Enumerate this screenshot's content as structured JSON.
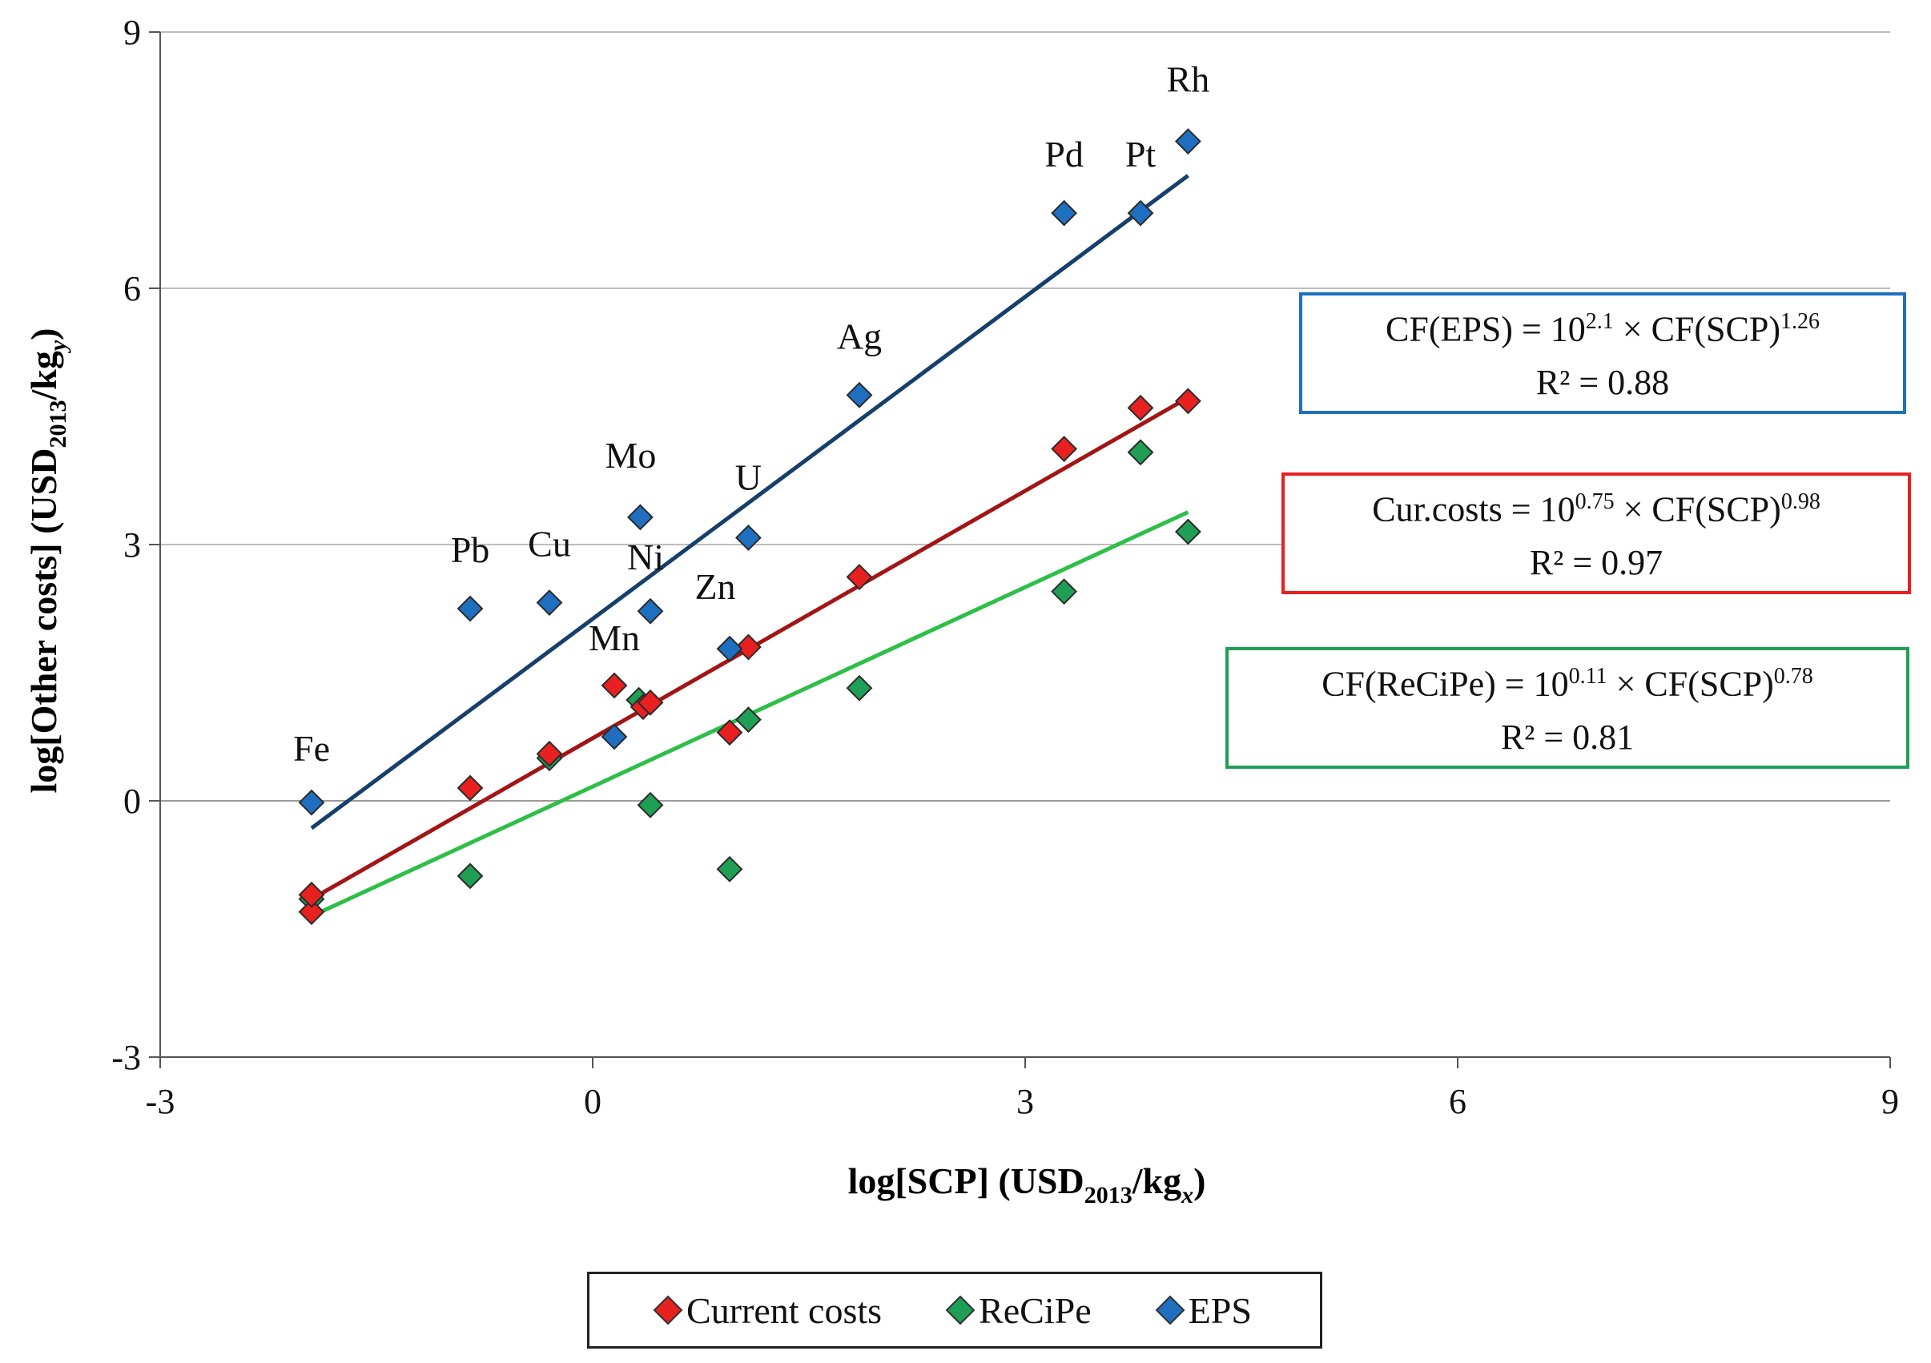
{
  "chart_data": {
    "type": "scatter",
    "title": "",
    "xlabel": {
      "main": "log[SCP] (USD",
      "sub": "2013",
      "slash": "/kg",
      "sub2": "x",
      "close": ")"
    },
    "ylabel": {
      "main": "log[Other costs] (USD",
      "sub": "2013",
      "slash": "/kg",
      "sub2": "y",
      "close": ")"
    },
    "xlim": [
      -3,
      9
    ],
    "ylim": [
      -3,
      9
    ],
    "xticks": [
      -3,
      0,
      3,
      6,
      9
    ],
    "yticks": [
      -3,
      0,
      3,
      6,
      9
    ],
    "grid": "horizontal",
    "series": [
      {
        "name": "Current costs",
        "color": "#e8201f",
        "points": [
          {
            "x": -1.95,
            "y": -1.3
          },
          {
            "x": -1.95,
            "y": -1.1
          },
          {
            "x": -0.85,
            "y": 0.15
          },
          {
            "x": -0.3,
            "y": 0.55
          },
          {
            "x": 0.15,
            "y": 1.35
          },
          {
            "x": 0.35,
            "y": 1.1
          },
          {
            "x": 0.4,
            "y": 1.15
          },
          {
            "x": 0.95,
            "y": 0.8
          },
          {
            "x": 1.08,
            "y": 1.8
          },
          {
            "x": 1.85,
            "y": 2.62
          },
          {
            "x": 3.27,
            "y": 4.12
          },
          {
            "x": 3.8,
            "y": 4.6
          },
          {
            "x": 4.13,
            "y": 4.68
          }
        ],
        "fit": {
          "x1": -1.95,
          "y1": -1.15,
          "x2": 4.13,
          "y2": 4.72,
          "color": "#a31515"
        }
      },
      {
        "name": "ReCiPe",
        "color": "#1f9f55",
        "points": [
          {
            "x": -1.95,
            "y": -1.15
          },
          {
            "x": -0.85,
            "y": -0.88
          },
          {
            "x": -0.3,
            "y": 0.5
          },
          {
            "x": 0.32,
            "y": 1.18
          },
          {
            "x": 0.4,
            "y": -0.05
          },
          {
            "x": 0.95,
            "y": -0.8
          },
          {
            "x": 1.08,
            "y": 0.95
          },
          {
            "x": 1.85,
            "y": 1.32
          },
          {
            "x": 3.27,
            "y": 2.45
          },
          {
            "x": 3.8,
            "y": 4.08
          },
          {
            "x": 4.13,
            "y": 3.15
          }
        ],
        "fit": {
          "x1": -1.95,
          "y1": -1.35,
          "x2": 4.13,
          "y2": 3.38,
          "color": "#2dbf47"
        }
      },
      {
        "name": "EPS",
        "color": "#1f6fc0",
        "points": [
          {
            "x": -1.95,
            "y": -0.02,
            "label": "Fe"
          },
          {
            "x": -0.85,
            "y": 2.25,
            "label": "Pb"
          },
          {
            "x": -0.3,
            "y": 2.32,
            "label": "Cu"
          },
          {
            "x": 0.15,
            "y": 0.75,
            "label": "Mn"
          },
          {
            "x": 0.33,
            "y": 3.32,
            "label": "Mo"
          },
          {
            "x": 0.4,
            "y": 2.22,
            "label": "Ni"
          },
          {
            "x": 0.95,
            "y": 1.78,
            "label": "Zn"
          },
          {
            "x": 1.08,
            "y": 3.08,
            "label": "U"
          },
          {
            "x": 1.85,
            "y": 4.75,
            "label": "Ag"
          },
          {
            "x": 3.27,
            "y": 6.88,
            "label": "Pd"
          },
          {
            "x": 3.8,
            "y": 6.88,
            "label": "Pt"
          },
          {
            "x": 4.13,
            "y": 7.72,
            "label": "Rh"
          }
        ],
        "fit": {
          "x1": -1.95,
          "y1": -0.32,
          "x2": 4.13,
          "y2": 7.32,
          "color": "#163f6b"
        }
      }
    ],
    "annotations": {
      "eps_equation": {
        "prefix": "CF(EPS) = 10",
        "exp1": "2.1",
        "mid": " × CF(SCP)",
        "exp2": "1.26",
        "r2": "R² = 0.88",
        "border": "#1f6fc0"
      },
      "cur_equation": {
        "prefix": "Cur.costs = 10",
        "exp1": "0.75",
        "mid": " × CF(SCP)",
        "exp2": "0.98",
        "r2": "R² = 0.97",
        "border": "#e8201f"
      },
      "recipe_equation": {
        "prefix": "CF(ReCiPe) = 10",
        "exp1": "0.11",
        "mid": " × CF(SCP)",
        "exp2": "0.78",
        "r2": "R² = 0.81",
        "border": "#1f9f55"
      }
    },
    "legend": [
      "Current costs",
      "ReCiPe",
      "EPS"
    ]
  }
}
